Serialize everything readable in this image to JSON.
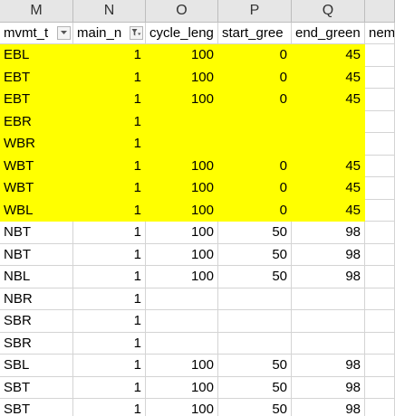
{
  "columns": [
    "M",
    "N",
    "O",
    "P",
    "Q",
    ""
  ],
  "headers": [
    {
      "label": "mvmt_t",
      "filter": "dropdown"
    },
    {
      "label": "main_n",
      "filter": "active-filter"
    },
    {
      "label": "cycle_leng",
      "filter": null
    },
    {
      "label": "start_gree",
      "filter": null
    },
    {
      "label": "end_green",
      "filter": null
    },
    {
      "label": "nem",
      "filter": null
    }
  ],
  "highlight_color": "#ffff00",
  "rows": [
    {
      "mvmt": "EBL",
      "main": "1",
      "cycle": "100",
      "start": "0",
      "end": "45",
      "highlight": true
    },
    {
      "mvmt": "EBT",
      "main": "1",
      "cycle": "100",
      "start": "0",
      "end": "45",
      "highlight": true
    },
    {
      "mvmt": "EBT",
      "main": "1",
      "cycle": "100",
      "start": "0",
      "end": "45",
      "highlight": true
    },
    {
      "mvmt": "EBR",
      "main": "1",
      "cycle": "",
      "start": "",
      "end": "",
      "highlight": true
    },
    {
      "mvmt": "WBR",
      "main": "1",
      "cycle": "",
      "start": "",
      "end": "",
      "highlight": true
    },
    {
      "mvmt": "WBT",
      "main": "1",
      "cycle": "100",
      "start": "0",
      "end": "45",
      "highlight": true
    },
    {
      "mvmt": "WBT",
      "main": "1",
      "cycle": "100",
      "start": "0",
      "end": "45",
      "highlight": true
    },
    {
      "mvmt": "WBL",
      "main": "1",
      "cycle": "100",
      "start": "0",
      "end": "45",
      "highlight": true
    },
    {
      "mvmt": "NBT",
      "main": "1",
      "cycle": "100",
      "start": "50",
      "end": "98",
      "highlight": false
    },
    {
      "mvmt": "NBT",
      "main": "1",
      "cycle": "100",
      "start": "50",
      "end": "98",
      "highlight": false
    },
    {
      "mvmt": "NBL",
      "main": "1",
      "cycle": "100",
      "start": "50",
      "end": "98",
      "highlight": false
    },
    {
      "mvmt": "NBR",
      "main": "1",
      "cycle": "",
      "start": "",
      "end": "",
      "highlight": false
    },
    {
      "mvmt": "SBR",
      "main": "1",
      "cycle": "",
      "start": "",
      "end": "",
      "highlight": false
    },
    {
      "mvmt": "SBR",
      "main": "1",
      "cycle": "",
      "start": "",
      "end": "",
      "highlight": false
    },
    {
      "mvmt": "SBL",
      "main": "1",
      "cycle": "100",
      "start": "50",
      "end": "98",
      "highlight": false
    },
    {
      "mvmt": "SBT",
      "main": "1",
      "cycle": "100",
      "start": "50",
      "end": "98",
      "highlight": false
    },
    {
      "mvmt": "SBT",
      "main": "1",
      "cycle": "100",
      "start": "50",
      "end": "98",
      "highlight": false
    }
  ]
}
